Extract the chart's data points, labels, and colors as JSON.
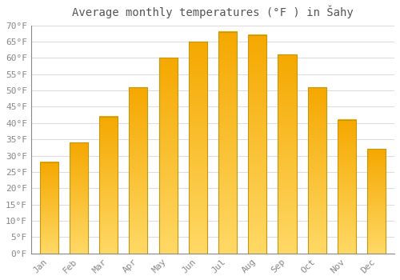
{
  "title": "Average monthly temperatures (°F ) in Šahy",
  "months": [
    "Jan",
    "Feb",
    "Mar",
    "Apr",
    "May",
    "Jun",
    "Jul",
    "Aug",
    "Sep",
    "Oct",
    "Nov",
    "Dec"
  ],
  "values": [
    28,
    34,
    42,
    51,
    60,
    65,
    68,
    67,
    61,
    51,
    41,
    32
  ],
  "bar_color_top": "#F5A800",
  "bar_color_bottom": "#FFD966",
  "bar_edge_color": "#C8960C",
  "ylim": [
    0,
    70
  ],
  "yticks": [
    0,
    5,
    10,
    15,
    20,
    25,
    30,
    35,
    40,
    45,
    50,
    55,
    60,
    65,
    70
  ],
  "background_color": "#ffffff",
  "grid_color": "#dddddd",
  "title_fontsize": 10,
  "tick_fontsize": 8,
  "font_family": "monospace"
}
